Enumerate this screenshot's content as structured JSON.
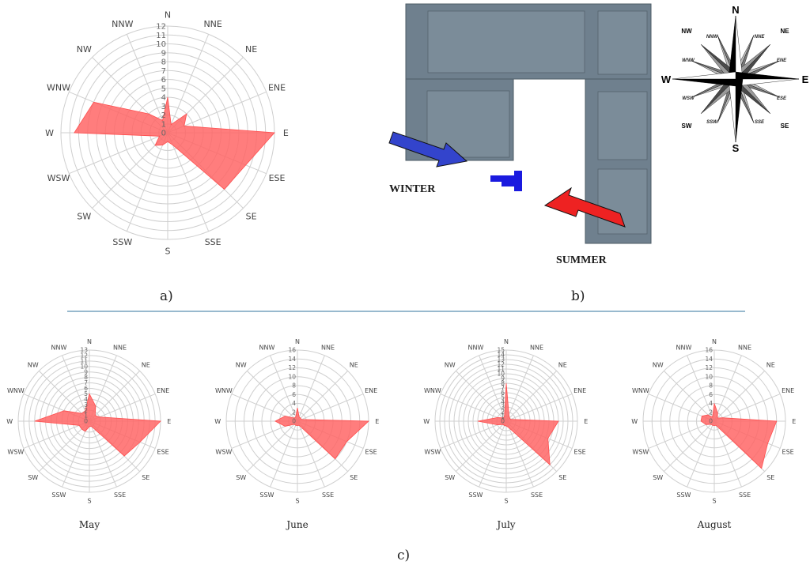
{
  "figure": {
    "panel_a_label": "a)",
    "panel_b_label": "b)",
    "panel_c_label": "c)",
    "separator_color": "#5b8fb0"
  },
  "directions": [
    "N",
    "NNE",
    "NE",
    "ENE",
    "E",
    "ESE",
    "SE",
    "SSE",
    "S",
    "SSW",
    "SW",
    "WSW",
    "W",
    "WNW",
    "NW",
    "NNW"
  ],
  "site_plan": {
    "winter_label": "WINTER",
    "summer_label": "SUMMER",
    "building_color": "#6f808e",
    "winter_arrow_color": "#3344cc",
    "summer_arrow_color": "#ee2222",
    "marker_color": "#1a1adf",
    "compass": {
      "cardinal": [
        "N",
        "E",
        "S",
        "W"
      ],
      "intercardinal": [
        "NE",
        "SE",
        "SW",
        "NW"
      ],
      "minor": [
        "NNE",
        "ENE",
        "ESE",
        "SSE",
        "SSW",
        "WSW",
        "WNW",
        "NNW"
      ]
    }
  },
  "chart_data": [
    {
      "id": "annual",
      "type": "radar",
      "panel": "a",
      "title": "",
      "categories": [
        "N",
        "NNE",
        "NE",
        "ENE",
        "E",
        "ESE",
        "SE",
        "SSE",
        "S",
        "SSW",
        "SW",
        "WSW",
        "W",
        "WNW",
        "NW",
        "NNW"
      ],
      "values": [
        4,
        1,
        3,
        2,
        12,
        9.5,
        9,
        1.5,
        1,
        1.5,
        2,
        1,
        10.5,
        9,
        3,
        1.5
      ],
      "rmax": 12,
      "ticks": [
        0,
        1,
        2,
        3,
        4,
        5,
        6,
        7,
        8,
        9,
        10,
        11,
        12
      ],
      "fill_color": "#ff6666",
      "grid": true
    },
    {
      "id": "may",
      "type": "radar",
      "panel": "c",
      "title": "May",
      "categories": [
        "N",
        "NNE",
        "NE",
        "ENE",
        "E",
        "ESE",
        "SE",
        "SSE",
        "S",
        "SSW",
        "SW",
        "WSW",
        "W",
        "WNW",
        "NW",
        "NNW"
      ],
      "values": [
        5,
        3,
        1.5,
        2,
        13,
        10,
        9,
        1,
        1,
        2,
        2,
        2,
        10,
        5,
        2,
        2
      ],
      "rmax": 13,
      "ticks": [
        0,
        1,
        2,
        3,
        4,
        5,
        6,
        7,
        8,
        9,
        10,
        11,
        12,
        13
      ],
      "fill_color": "#ff6666",
      "grid": true
    },
    {
      "id": "june",
      "type": "radar",
      "panel": "c",
      "title": "June",
      "categories": [
        "N",
        "NNE",
        "NE",
        "ENE",
        "E",
        "ESE",
        "SE",
        "SSE",
        "S",
        "SSW",
        "SW",
        "WSW",
        "W",
        "WNW",
        "NW",
        "NNW"
      ],
      "values": [
        3,
        1,
        1,
        1,
        16,
        12,
        12,
        1,
        1,
        1,
        1,
        3,
        5,
        3,
        1,
        1
      ],
      "rmax": 16,
      "ticks": [
        0,
        2,
        4,
        6,
        8,
        10,
        12,
        14,
        16
      ],
      "fill_color": "#ff6666",
      "grid": true
    },
    {
      "id": "july",
      "type": "radar",
      "panel": "c",
      "title": "July",
      "categories": [
        "N",
        "NNE",
        "NE",
        "ENE",
        "E",
        "ESE",
        "SE",
        "SSE",
        "S",
        "SSW",
        "SW",
        "WSW",
        "W",
        "WNW",
        "NW",
        "NNW"
      ],
      "values": [
        8,
        1.5,
        1,
        1,
        11,
        9.5,
        13,
        1.5,
        1,
        1,
        1,
        2,
        6,
        2,
        1,
        1
      ],
      "rmax": 15,
      "ticks": [
        0,
        1,
        2,
        3,
        4,
        5,
        6,
        7,
        8,
        9,
        10,
        11,
        12,
        13,
        14,
        15
      ],
      "fill_color": "#ff6666",
      "grid": true
    },
    {
      "id": "august",
      "type": "radar",
      "panel": "c",
      "title": "August",
      "categories": [
        "N",
        "NNE",
        "NE",
        "ENE",
        "E",
        "ESE",
        "SE",
        "SSE",
        "S",
        "SSW",
        "SW",
        "WSW",
        "W",
        "WNW",
        "NW",
        "NNW"
      ],
      "values": [
        4,
        2,
        1,
        2,
        14,
        13,
        15,
        1,
        1,
        1,
        1,
        2,
        3,
        3,
        2,
        1
      ],
      "rmax": 16,
      "ticks": [
        0,
        2,
        4,
        6,
        8,
        10,
        12,
        14,
        16
      ],
      "fill_color": "#ff6666",
      "grid": true
    }
  ]
}
